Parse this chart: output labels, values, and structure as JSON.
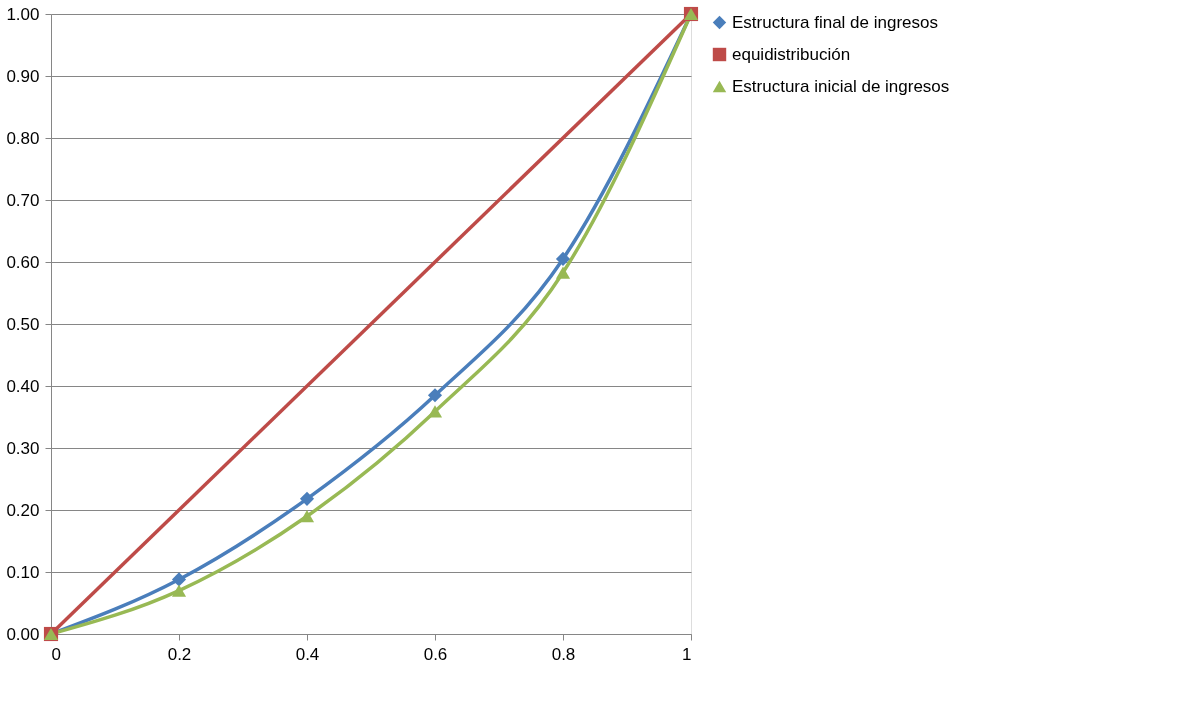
{
  "chart_data": {
    "type": "line",
    "x": [
      0,
      0.2,
      0.4,
      0.6,
      0.8,
      1
    ],
    "series": [
      {
        "name": "Estructura final de ingresos",
        "color": "#4a7ebb",
        "marker": "diamond",
        "values": [
          0,
          0.088,
          0.218,
          0.385,
          0.605,
          1
        ]
      },
      {
        "name": "equidistribución",
        "color": "#be4b48",
        "marker": "square",
        "x": [
          0,
          1
        ],
        "values": [
          0,
          1
        ]
      },
      {
        "name": "Estructura inicial de ingresos",
        "color": "#98b954",
        "marker": "triangle",
        "values": [
          0,
          0.07,
          0.19,
          0.359,
          0.583,
          1
        ]
      }
    ],
    "xlim": [
      0,
      1
    ],
    "xticks": [
      0,
      0.2,
      0.4,
      0.6,
      0.8,
      1
    ],
    "ylim": [
      0,
      1
    ],
    "yticks": [
      {
        "value": 0,
        "label": "0.00"
      },
      {
        "value": 0.1,
        "label": "0.10"
      },
      {
        "value": 0.2,
        "label": "0.20"
      },
      {
        "value": 0.3,
        "label": "0.30"
      },
      {
        "value": 0.4,
        "label": "0.40"
      },
      {
        "value": 0.5,
        "label": "0.50"
      },
      {
        "value": 0.6,
        "label": "0.60"
      },
      {
        "value": 0.7,
        "label": "0.70"
      },
      {
        "value": 0.8,
        "label": "0.80"
      },
      {
        "value": 0.9,
        "label": "0.90"
      },
      {
        "value": 1,
        "label": "1.00"
      }
    ],
    "grid": "y",
    "legend": "right",
    "line_style": "solid"
  }
}
